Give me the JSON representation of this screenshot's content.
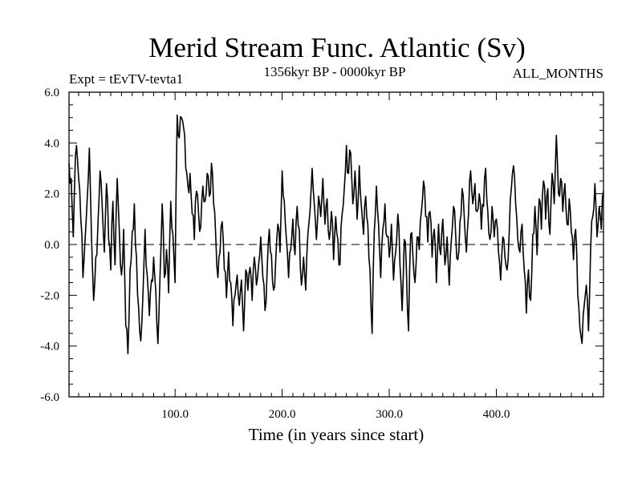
{
  "chart_data": {
    "type": "line",
    "title": "Merid Stream Func. Atlantic (Sv)",
    "subtitle_left": "Expt = tEvTV-tevta1",
    "subtitle_center": "1356kyr BP - 0000kyr BP",
    "subtitle_right": "ALL_MONTHS",
    "xlabel": "Time (in years since start)",
    "ylabel": "",
    "xlim": [
      1,
      500
    ],
    "ylim": [
      -6,
      6
    ],
    "x_ticks": [
      100,
      200,
      300,
      400
    ],
    "x_tick_labels": [
      "100.0",
      "200.0",
      "300.0",
      "400.0"
    ],
    "y_ticks": [
      -6,
      -4,
      -2,
      0,
      2,
      4,
      6
    ],
    "y_tick_labels": [
      "-6.0",
      "-4.0",
      "-2.0",
      "0.0",
      "2.0",
      "4.0",
      "6.0"
    ],
    "reference_line": {
      "y": 0,
      "style": "dashed"
    },
    "series": [
      {
        "name": "Merid Stream Func. Atlantic",
        "x_start": 1,
        "x_step": 1,
        "keypoints": [
          [
            1,
            3.2
          ],
          [
            3,
            2.6
          ],
          [
            5,
            0.3
          ],
          [
            7,
            3.5
          ],
          [
            8,
            3.9
          ],
          [
            10,
            2.6
          ],
          [
            12,
            1.0
          ],
          [
            14,
            -1.3
          ],
          [
            16,
            0.2
          ],
          [
            18,
            1.8
          ],
          [
            20,
            3.8
          ],
          [
            22,
            0.3
          ],
          [
            24,
            -2.2
          ],
          [
            26,
            -0.5
          ],
          [
            28,
            0.8
          ],
          [
            30,
            2.9
          ],
          [
            32,
            1.5
          ],
          [
            34,
            -0.3
          ],
          [
            36,
            2.4
          ],
          [
            38,
            0.2
          ],
          [
            40,
            -1.0
          ],
          [
            42,
            1.7
          ],
          [
            44,
            -0.8
          ],
          [
            46,
            2.6
          ],
          [
            48,
            0.5
          ],
          [
            50,
            -1.2
          ],
          [
            52,
            0.6
          ],
          [
            54,
            -3.2
          ],
          [
            56,
            -4.3
          ],
          [
            58,
            -1.0
          ],
          [
            60,
            0.5
          ],
          [
            62,
            1.6
          ],
          [
            64,
            -0.5
          ],
          [
            66,
            -2.5
          ],
          [
            68,
            -3.8
          ],
          [
            70,
            -2.0
          ],
          [
            72,
            0.6
          ],
          [
            74,
            -1.2
          ],
          [
            76,
            -2.8
          ],
          [
            78,
            -1.4
          ],
          [
            80,
            -0.5
          ],
          [
            82,
            -1.8
          ],
          [
            84,
            -3.9
          ],
          [
            86,
            -1.2
          ],
          [
            88,
            1.6
          ],
          [
            90,
            -1.3
          ],
          [
            92,
            -0.2
          ],
          [
            94,
            -1.9
          ],
          [
            96,
            1.7
          ],
          [
            98,
            0.4
          ],
          [
            100,
            -1.5
          ],
          [
            102,
            5.1
          ],
          [
            104,
            4.2
          ],
          [
            106,
            5.0
          ],
          [
            108,
            4.6
          ],
          [
            110,
            3.0
          ],
          [
            112,
            2.3
          ],
          [
            114,
            2.8
          ],
          [
            116,
            1.2
          ],
          [
            118,
            0.2
          ],
          [
            120,
            2.1
          ],
          [
            122,
            1.2
          ],
          [
            124,
            0.7
          ],
          [
            126,
            2.3
          ],
          [
            128,
            1.7
          ],
          [
            130,
            2.8
          ],
          [
            132,
            1.9
          ],
          [
            134,
            3.2
          ],
          [
            136,
            1.6
          ],
          [
            138,
            0.3
          ],
          [
            140,
            -1.3
          ],
          [
            142,
            -0.3
          ],
          [
            144,
            0.9
          ],
          [
            146,
            -1.0
          ],
          [
            148,
            -2.1
          ],
          [
            150,
            -0.3
          ],
          [
            152,
            -1.5
          ],
          [
            154,
            -3.2
          ],
          [
            156,
            -2.0
          ],
          [
            158,
            -1.2
          ],
          [
            160,
            -2.4
          ],
          [
            162,
            -1.4
          ],
          [
            164,
            -3.4
          ],
          [
            166,
            -1.0
          ],
          [
            168,
            -1.8
          ],
          [
            170,
            -0.9
          ],
          [
            172,
            -2.2
          ],
          [
            174,
            -0.5
          ],
          [
            176,
            -1.6
          ],
          [
            178,
            -0.8
          ],
          [
            180,
            0.3
          ],
          [
            182,
            -1.3
          ],
          [
            184,
            -2.6
          ],
          [
            186,
            -1.0
          ],
          [
            188,
            0.6
          ],
          [
            190,
            -0.4
          ],
          [
            192,
            -1.8
          ],
          [
            194,
            -0.6
          ],
          [
            196,
            0.8
          ],
          [
            198,
            -0.3
          ],
          [
            200,
            2.9
          ],
          [
            202,
            1.7
          ],
          [
            204,
            0.2
          ],
          [
            206,
            -1.3
          ],
          [
            208,
            -0.2
          ],
          [
            210,
            1.0
          ],
          [
            212,
            -0.4
          ],
          [
            214,
            1.5
          ],
          [
            216,
            0.6
          ],
          [
            218,
            -1.6
          ],
          [
            220,
            -0.5
          ],
          [
            222,
            -1.8
          ],
          [
            224,
            0.4
          ],
          [
            226,
            1.3
          ],
          [
            228,
            3.0
          ],
          [
            230,
            1.6
          ],
          [
            232,
            0.2
          ],
          [
            234,
            1.9
          ],
          [
            236,
            1.1
          ],
          [
            238,
            2.6
          ],
          [
            240,
            0.8
          ],
          [
            242,
            1.8
          ],
          [
            244,
            0.2
          ],
          [
            246,
            1.3
          ],
          [
            248,
            -0.6
          ],
          [
            250,
            1.1
          ],
          [
            252,
            0.2
          ],
          [
            254,
            -0.8
          ],
          [
            256,
            1.2
          ],
          [
            258,
            2.2
          ],
          [
            260,
            3.9
          ],
          [
            262,
            2.8
          ],
          [
            264,
            3.6
          ],
          [
            266,
            1.6
          ],
          [
            268,
            2.9
          ],
          [
            270,
            1.0
          ],
          [
            272,
            3.1
          ],
          [
            274,
            1.5
          ],
          [
            276,
            0.4
          ],
          [
            278,
            1.9
          ],
          [
            280,
            0.8
          ],
          [
            282,
            -1.0
          ],
          [
            284,
            -3.5
          ],
          [
            286,
            0.5
          ],
          [
            288,
            2.3
          ],
          [
            290,
            0.8
          ],
          [
            292,
            -1.3
          ],
          [
            294,
            0.6
          ],
          [
            296,
            1.6
          ],
          [
            298,
            0.3
          ],
          [
            300,
            -0.5
          ],
          [
            302,
            0.8
          ],
          [
            304,
            -1.4
          ],
          [
            306,
            -0.3
          ],
          [
            308,
            1.2
          ],
          [
            310,
            -0.8
          ],
          [
            312,
            -2.6
          ],
          [
            314,
            0.2
          ],
          [
            316,
            -1.0
          ],
          [
            318,
            -3.4
          ],
          [
            320,
            0.4
          ],
          [
            322,
            -0.4
          ],
          [
            324,
            -1.5
          ],
          [
            326,
            0.3
          ],
          [
            328,
            -0.2
          ],
          [
            330,
            1.3
          ],
          [
            332,
            2.5
          ],
          [
            334,
            1.1
          ],
          [
            336,
            0.1
          ],
          [
            338,
            1.3
          ],
          [
            340,
            -0.5
          ],
          [
            342,
            0.6
          ],
          [
            344,
            -1.5
          ],
          [
            346,
            0.8
          ],
          [
            348,
            -0.4
          ],
          [
            350,
            1.0
          ],
          [
            352,
            -0.8
          ],
          [
            354,
            0.3
          ],
          [
            356,
            -1.6
          ],
          [
            358,
            0.2
          ],
          [
            360,
            1.5
          ],
          [
            362,
            0.4
          ],
          [
            364,
            -0.6
          ],
          [
            366,
            0.9
          ],
          [
            368,
            2.2
          ],
          [
            370,
            1.1
          ],
          [
            372,
            -0.3
          ],
          [
            374,
            1.2
          ],
          [
            376,
            2.9
          ],
          [
            378,
            1.6
          ],
          [
            380,
            2.4
          ],
          [
            382,
            1.3
          ],
          [
            384,
            2.0
          ],
          [
            386,
            0.6
          ],
          [
            388,
            1.5
          ],
          [
            390,
            3.0
          ],
          [
            392,
            1.3
          ],
          [
            394,
            0.2
          ],
          [
            396,
            1.5
          ],
          [
            398,
            0.3
          ],
          [
            400,
            1.0
          ],
          [
            402,
            -0.3
          ],
          [
            404,
            -1.4
          ],
          [
            406,
            0.3
          ],
          [
            408,
            -0.5
          ],
          [
            410,
            -1.0
          ],
          [
            412,
            0.5
          ],
          [
            414,
            2.2
          ],
          [
            416,
            3.1
          ],
          [
            418,
            1.6
          ],
          [
            420,
            0.2
          ],
          [
            422,
            -0.3
          ],
          [
            424,
            0.8
          ],
          [
            426,
            -1.0
          ],
          [
            428,
            -2.7
          ],
          [
            430,
            -1.0
          ],
          [
            432,
            -2.2
          ],
          [
            434,
            0.4
          ],
          [
            436,
            1.5
          ],
          [
            438,
            -0.4
          ],
          [
            440,
            1.8
          ],
          [
            442,
            0.6
          ],
          [
            444,
            2.5
          ],
          [
            446,
            1.0
          ],
          [
            448,
            2.2
          ],
          [
            450,
            0.4
          ],
          [
            452,
            2.8
          ],
          [
            454,
            1.6
          ],
          [
            456,
            4.3
          ],
          [
            458,
            2.0
          ],
          [
            460,
            2.6
          ],
          [
            462,
            1.3
          ],
          [
            464,
            2.4
          ],
          [
            466,
            0.8
          ],
          [
            468,
            1.8
          ],
          [
            470,
            0.5
          ],
          [
            472,
            -0.6
          ],
          [
            474,
            0.6
          ],
          [
            476,
            -2.0
          ],
          [
            478,
            -3.3
          ],
          [
            480,
            -3.9
          ],
          [
            482,
            -2.4
          ],
          [
            484,
            -1.6
          ],
          [
            486,
            -3.4
          ],
          [
            488,
            -0.2
          ],
          [
            490,
            1.1
          ],
          [
            492,
            2.4
          ],
          [
            494,
            0.3
          ],
          [
            496,
            1.5
          ],
          [
            498,
            0.6
          ],
          [
            500,
            2.1
          ]
        ]
      }
    ]
  }
}
